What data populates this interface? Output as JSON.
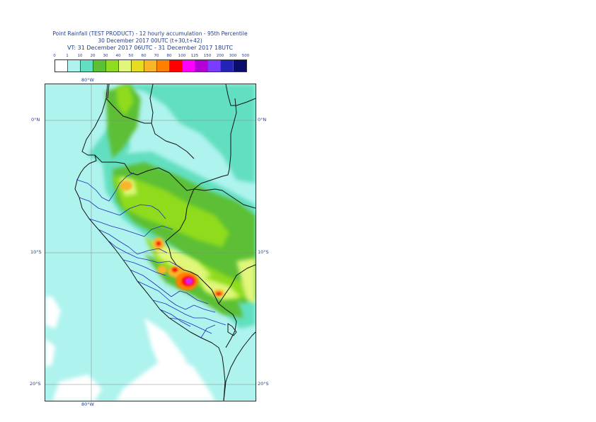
{
  "title": {
    "line1": "Point Rainfall (TEST PRODUCT) - 12 hourly accumulation - 95th Percentile",
    "line2": "30 December 2017 00UTC (t+30,t+42)",
    "line3": "VT: 31 December 2017 06UTC - 31 December 2017 18UTC"
  },
  "legend": {
    "ticks": [
      "0",
      "1",
      "10",
      "20",
      "30",
      "40",
      "50",
      "60",
      "70",
      "80",
      "100",
      "125",
      "150",
      "200",
      "300",
      "500"
    ],
    "colors": [
      "#ffffff",
      "#aef3ee",
      "#62dfc0",
      "#5cbf34",
      "#8fdb1f",
      "#e0f77a",
      "#e8dc1e",
      "#f7b52a",
      "#ff7f00",
      "#ff0000",
      "#ff00ff",
      "#b200d6",
      "#7a3cff",
      "#2323b8",
      "#0c0c6a"
    ]
  },
  "map": {
    "lat_labels": [
      "0°N",
      "10°S",
      "20°S"
    ],
    "lon_label": "80°W"
  }
}
